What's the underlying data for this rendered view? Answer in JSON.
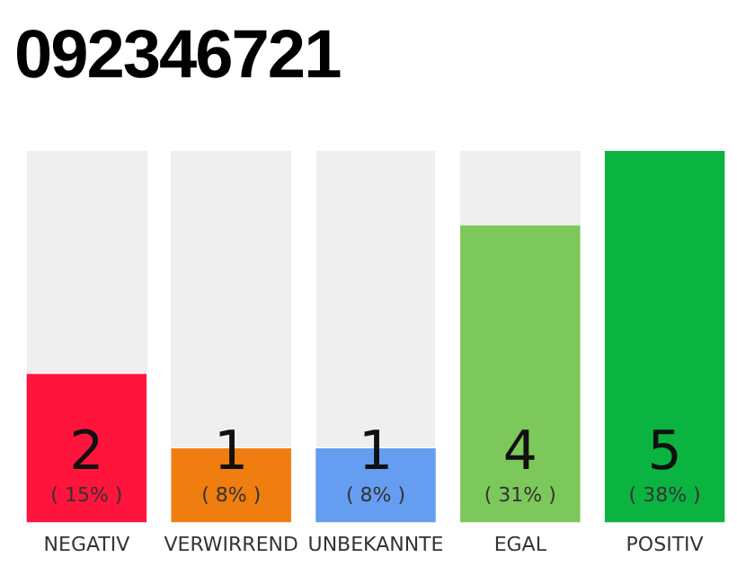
{
  "chart_data": {
    "type": "bar",
    "title": "092346721",
    "categories": [
      "NEGATIV",
      "VERWIRREND",
      "UNBEKANNTE",
      "EGAL",
      "POSITIV"
    ],
    "values": [
      2,
      1,
      1,
      4,
      5
    ],
    "colors": [
      "#ff143c",
      "#f07d0f",
      "#659df0",
      "#7cc85a",
      "#0bb441"
    ],
    "value_labels": [
      "2\n( 15% )",
      "1\n( 8% )",
      "1\n( 8% )",
      "4\n( 31% )",
      "5\n( 38% )"
    ],
    "relative": false,
    "grid": false,
    "legend": false
  }
}
